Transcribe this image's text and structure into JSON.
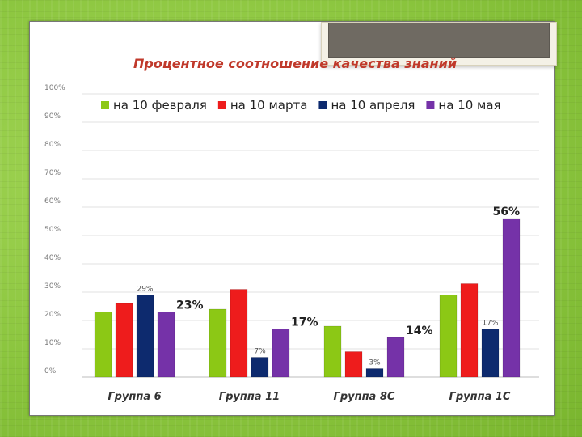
{
  "chart_data": {
    "type": "bar",
    "title": "Процентное соотношение качества знаний",
    "categories": [
      "Группа 6",
      "Группа 11",
      "Группа 8С",
      "Группа 1С"
    ],
    "series": [
      {
        "name": "на 10 февраля",
        "color": "#8cc815",
        "values": [
          23,
          24,
          18,
          29
        ]
      },
      {
        "name": "на 10 марта",
        "color": "#ee1c1c",
        "values": [
          26,
          31,
          9,
          33
        ]
      },
      {
        "name": "на 10 апреля",
        "color": "#0d2a6e",
        "values": [
          29,
          7,
          3,
          17
        ]
      },
      {
        "name": "на 10 мая",
        "color": "#7532a8",
        "values": [
          23,
          17,
          14,
          56
        ]
      }
    ],
    "ylim": [
      0,
      100
    ],
    "yticks": [
      "0%",
      "10%",
      "20%",
      "30%",
      "40%",
      "50%",
      "60%",
      "70%",
      "80%",
      "90%",
      "100%"
    ],
    "grid": true,
    "legend_position": "top",
    "annotations": [
      {
        "text": "29%",
        "category": 0,
        "series": 2,
        "style": "small"
      },
      {
        "text": "23%",
        "category": 0,
        "series": 3,
        "style": "big"
      },
      {
        "text": "7%",
        "category": 1,
        "series": 2,
        "style": "small"
      },
      {
        "text": "17%",
        "category": 1,
        "series": 3,
        "style": "big"
      },
      {
        "text": "3%",
        "category": 2,
        "series": 2,
        "style": "small"
      },
      {
        "text": "14%",
        "category": 2,
        "series": 3,
        "style": "big"
      },
      {
        "text": "17%",
        "category": 3,
        "series": 2,
        "style": "small"
      },
      {
        "text": "56%",
        "category": 3,
        "series": 3,
        "style": "big"
      }
    ]
  },
  "colors": {
    "title": "#c0392b",
    "background": "#8cc63f"
  }
}
